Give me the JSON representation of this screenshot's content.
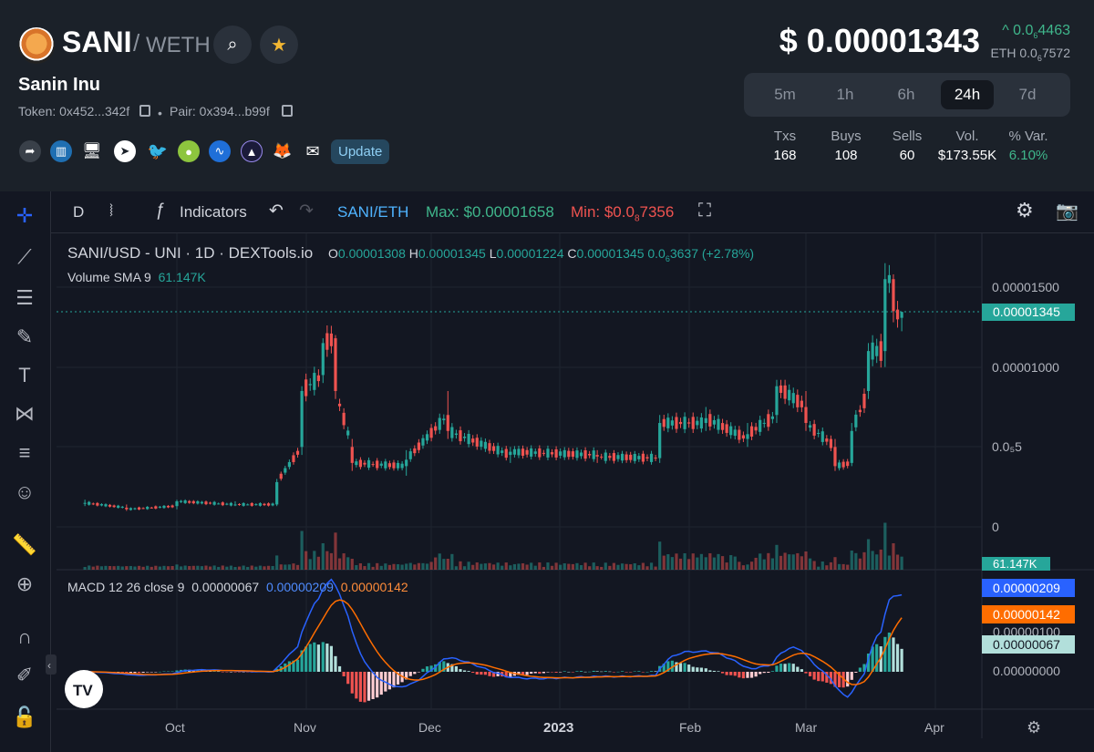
{
  "header": {
    "base_symbol": "SANI",
    "separator": "/",
    "quote_symbol": "WETH",
    "token_name": "Sanin Inu",
    "token_addr": "Token: 0x452...342f",
    "pair_addr": "Pair: 0x394...b99f",
    "update_label": "Update",
    "price": "$ 0.00001343",
    "change": "^ 0.0",
    "change_sub": "6",
    "change_rest": "4463",
    "eth_prefix": "ETH 0.0",
    "eth_sub": "6",
    "eth_rest": "7572",
    "timeframes": [
      "5m",
      "1h",
      "6h",
      "24h",
      "7d"
    ],
    "active_timeframe": "24h",
    "stats": [
      {
        "label": "Txs",
        "value": "168"
      },
      {
        "label": "Buys",
        "value": "108"
      },
      {
        "label": "Sells",
        "value": "60"
      },
      {
        "label": "Vol.",
        "value": "$173.55K"
      },
      {
        "label": "% Var.",
        "value": "6.10%"
      }
    ]
  },
  "toolbar": {
    "interval": "D",
    "indicators_label": "Indicators",
    "symbol": "SANI/ETH",
    "max_label": "Max: $0.00001658",
    "min_prefix": "Min: $0.0",
    "min_sub": "8",
    "min_rest": "7356"
  },
  "legend": {
    "title": "SANI/USD - UNI · 1D · DEXTools.io",
    "o_label": "O",
    "o_value": "0.00001308",
    "h_label": "H",
    "h_value": "0.00001345",
    "l_label": "L",
    "l_value": "0.00001224",
    "c_label": "C",
    "c_value": "0.00001345",
    "chg_prefix": "0.0",
    "chg_sub": "6",
    "chg_rest": "3637 (+2.78%)",
    "volume_label": "Volume SMA 9",
    "volume_value": "61.147K",
    "macd_label": "MACD 12 26 close 9",
    "macd_hist": "0.00000067",
    "macd_line": "0.00000209",
    "macd_signal": "0.00000142"
  },
  "colors": {
    "up": "#26a69a",
    "down": "#ef5350",
    "macd_line": "#2962ff",
    "macd_signal": "#ff6d00",
    "accent_green": "#3fb68b"
  },
  "chart_data": {
    "type": "candlestick",
    "price_axis_labels": [
      "0.00001500",
      "0.00001000",
      "0.0₅5",
      "0"
    ],
    "current_price_label": "0.00001345",
    "volume_label": "61.147K",
    "macd_axis_labels": [
      "0.00000209",
      "0.00000142",
      "0.00000100",
      "0.00000067",
      "0.00000000"
    ],
    "x_axis_labels": [
      "Oct",
      "Nov",
      "Dec",
      "2023",
      "Feb",
      "Mar",
      "Apr"
    ],
    "ylim": [
      0,
      1.75e-05
    ],
    "candles": [
      {
        "x": "Sep 10",
        "o": 1.5e-06,
        "h": 1.7e-06,
        "l": 1.3e-06,
        "c": 1.5e-06
      },
      {
        "x": "Sep 20",
        "o": 1.2e-06,
        "h": 1.4e-06,
        "l": 1e-06,
        "c": 1.1e-06
      },
      {
        "x": "Oct 01",
        "o": 1.3e-06,
        "h": 1.7e-06,
        "l": 1.1e-06,
        "c": 1.6e-06
      },
      {
        "x": "Oct 15",
        "o": 1.4e-06,
        "h": 1.6e-06,
        "l": 1.3e-06,
        "c": 1.4e-06
      },
      {
        "x": "Oct 25",
        "o": 1.4e-06,
        "h": 3e-06,
        "l": 1.3e-06,
        "c": 2.8e-06
      },
      {
        "x": "Oct 31",
        "o": 5e-06,
        "h": 8.8e-06,
        "l": 4.5e-06,
        "c": 8.5e-06
      },
      {
        "x": "Nov 05",
        "o": 9.5e-06,
        "h": 1.18e-05,
        "l": 9e-06,
        "c": 1.15e-05
      },
      {
        "x": "Nov 08",
        "o": 1.18e-05,
        "h": 1.2e-05,
        "l": 8e-06,
        "c": 8.5e-06
      },
      {
        "x": "Nov 12",
        "o": 5e-06,
        "h": 5.5e-06,
        "l": 3.5e-06,
        "c": 4e-06
      },
      {
        "x": "Nov 25",
        "o": 3.8e-06,
        "h": 4.8e-06,
        "l": 3.2e-06,
        "c": 4.2e-06
      },
      {
        "x": "Dec 05",
        "o": 7e-06,
        "h": 8.5e-06,
        "l": 5.5e-06,
        "c": 6e-06
      },
      {
        "x": "Dec 20",
        "o": 4.5e-06,
        "h": 5e-06,
        "l": 4e-06,
        "c": 4.7e-06
      },
      {
        "x": "Jan 10",
        "o": 4.5e-06,
        "h": 4.8e-06,
        "l": 4e-06,
        "c": 4.4e-06
      },
      {
        "x": "Jan 25",
        "o": 4.3e-06,
        "h": 7e-06,
        "l": 4e-06,
        "c": 6.5e-06
      },
      {
        "x": "Feb 05",
        "o": 6.5e-06,
        "h": 7.5e-06,
        "l": 6e-06,
        "c": 6.8e-06
      },
      {
        "x": "Feb 15",
        "o": 5.5e-06,
        "h": 6.5e-06,
        "l": 5e-06,
        "c": 5.8e-06
      },
      {
        "x": "Feb 22",
        "o": 7e-06,
        "h": 9.2e-06,
        "l": 6.5e-06,
        "c": 8.8e-06
      },
      {
        "x": "Mar 01",
        "o": 7.5e-06,
        "h": 8.5e-06,
        "l": 6e-06,
        "c": 6.5e-06
      },
      {
        "x": "Mar 08",
        "o": 5e-06,
        "h": 5.5e-06,
        "l": 3.5e-06,
        "c": 3.8e-06
      },
      {
        "x": "Mar 12",
        "o": 4e-06,
        "h": 6.5e-06,
        "l": 3.8e-06,
        "c": 6e-06
      },
      {
        "x": "Mar 16",
        "o": 8.5e-06,
        "h": 1.15e-05,
        "l": 8e-06,
        "c": 1.1e-05
      },
      {
        "x": "Mar 20",
        "o": 1.1e-05,
        "h": 1.65e-05,
        "l": 1e-05,
        "c": 1.55e-05
      },
      {
        "x": "Mar 22",
        "o": 1.55e-05,
        "h": 1.58e-05,
        "l": 1.28e-05,
        "c": 1.35e-05
      },
      {
        "x": "Mar 24",
        "o": 1.308e-05,
        "h": 1.345e-05,
        "l": 1.224e-05,
        "c": 1.345e-05
      }
    ]
  }
}
